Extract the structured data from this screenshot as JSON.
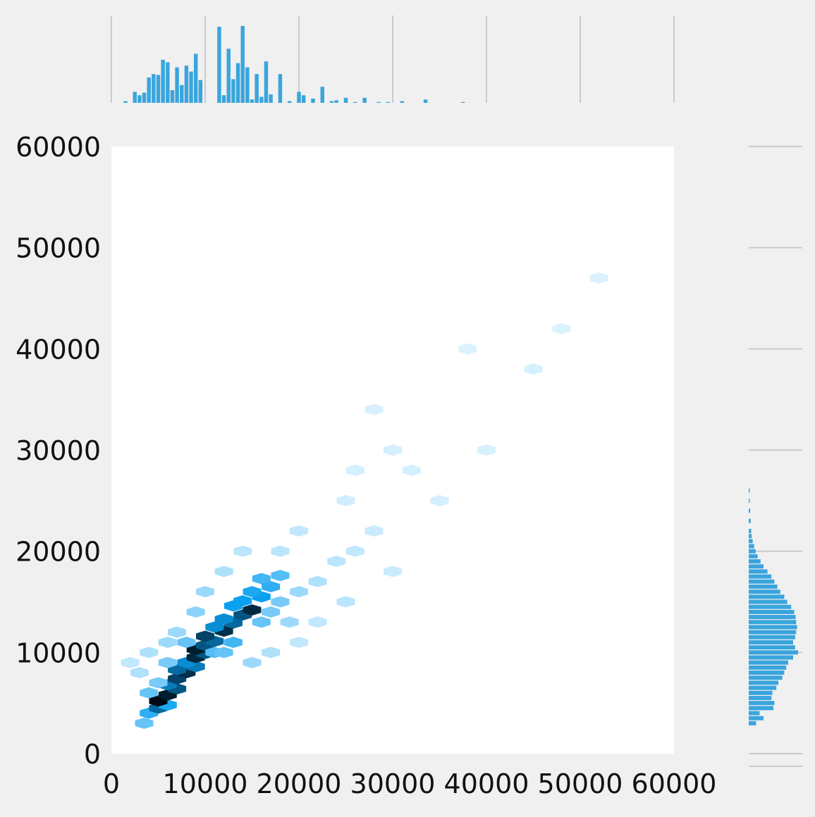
{
  "chart_data": {
    "type": "hexbin",
    "title": "",
    "xlabel": "",
    "ylabel": "",
    "xlim": [
      0,
      60000
    ],
    "ylim": [
      0,
      60000
    ],
    "x_ticks": [
      "0",
      "10000",
      "20000",
      "30000",
      "40000",
      "50000",
      "60000"
    ],
    "y_ticks": [
      "0",
      "10000",
      "20000",
      "30000",
      "40000",
      "50000",
      "60000"
    ],
    "grid": true,
    "colors": {
      "background": "#f0f0f0",
      "plot_background": "#ffffff",
      "bar": "#3aa5dc",
      "hex_low": "#e6f6ff",
      "hex_mid": "#0aa0f0",
      "hex_high": "#000a14",
      "grid": "#cbcbcb"
    },
    "hexbin_cells": [
      [
        3500,
        3000,
        0.35
      ],
      [
        4000,
        4000,
        0.5
      ],
      [
        5000,
        4500,
        0.75
      ],
      [
        6000,
        4800,
        0.55
      ],
      [
        5000,
        5200,
        1.0
      ],
      [
        6000,
        5800,
        0.95
      ],
      [
        7000,
        6400,
        0.8
      ],
      [
        6000,
        6800,
        0.7
      ],
      [
        7000,
        7400,
        0.85
      ],
      [
        8000,
        8000,
        0.9
      ],
      [
        7000,
        8300,
        0.75
      ],
      [
        9000,
        8600,
        0.7
      ],
      [
        8000,
        9000,
        0.65
      ],
      [
        9000,
        9500,
        0.92
      ],
      [
        10000,
        9900,
        0.8
      ],
      [
        9000,
        10300,
        0.95
      ],
      [
        10000,
        10700,
        0.8
      ],
      [
        11000,
        11100,
        0.75
      ],
      [
        10000,
        11600,
        0.85
      ],
      [
        12000,
        12100,
        0.9
      ],
      [
        11000,
        12500,
        0.65
      ],
      [
        13000,
        12900,
        0.75
      ],
      [
        12000,
        13300,
        0.65
      ],
      [
        14000,
        13700,
        0.8
      ],
      [
        15000,
        14200,
        0.92
      ],
      [
        13000,
        14600,
        0.6
      ],
      [
        14000,
        15100,
        0.6
      ],
      [
        16000,
        15500,
        0.6
      ],
      [
        15000,
        16000,
        0.55
      ],
      [
        17000,
        16500,
        0.5
      ],
      [
        16000,
        17300,
        0.45
      ],
      [
        18000,
        17600,
        0.4
      ],
      [
        4000,
        6000,
        0.35
      ],
      [
        5000,
        7000,
        0.3
      ],
      [
        3000,
        8000,
        0.15
      ],
      [
        6000,
        9000,
        0.3
      ],
      [
        8000,
        11000,
        0.35
      ],
      [
        7000,
        12000,
        0.2
      ],
      [
        11000,
        10000,
        0.4
      ],
      [
        12000,
        10000,
        0.35
      ],
      [
        13000,
        11000,
        0.45
      ],
      [
        16000,
        13000,
        0.35
      ],
      [
        17000,
        14000,
        0.3
      ],
      [
        18000,
        15000,
        0.3
      ],
      [
        19000,
        13000,
        0.2
      ],
      [
        20000,
        16000,
        0.2
      ],
      [
        22000,
        17000,
        0.15
      ],
      [
        24000,
        19000,
        0.12
      ],
      [
        25000,
        15000,
        0.12
      ],
      [
        26000,
        20000,
        0.1
      ],
      [
        28000,
        22000,
        0.08
      ],
      [
        30000,
        18000,
        0.08
      ],
      [
        9000,
        14000,
        0.25
      ],
      [
        10000,
        16000,
        0.2
      ],
      [
        12000,
        18000,
        0.15
      ],
      [
        14000,
        20000,
        0.12
      ],
      [
        6000,
        11000,
        0.2
      ],
      [
        4000,
        10000,
        0.15
      ],
      [
        2000,
        9000,
        0.1
      ],
      [
        15000,
        9000,
        0.2
      ],
      [
        17000,
        10000,
        0.15
      ],
      [
        20000,
        11000,
        0.1
      ],
      [
        22000,
        13000,
        0.1
      ],
      [
        35000,
        25000,
        0.05
      ],
      [
        40000,
        30000,
        0.04
      ],
      [
        45000,
        38000,
        0.04
      ],
      [
        32000,
        28000,
        0.05
      ],
      [
        28000,
        34000,
        0.04
      ],
      [
        18000,
        20000,
        0.12
      ],
      [
        20000,
        22000,
        0.1
      ],
      [
        25000,
        25000,
        0.06
      ],
      [
        30000,
        30000,
        0.05
      ],
      [
        48000,
        42000,
        0.03
      ],
      [
        52000,
        47000,
        0.03
      ],
      [
        38000,
        40000,
        0.03
      ],
      [
        26000,
        28000,
        0.05
      ]
    ],
    "marginal_x_bins": [
      [
        1500,
        0.02
      ],
      [
        2500,
        0.13
      ],
      [
        3000,
        0.09
      ],
      [
        3500,
        0.12
      ],
      [
        4000,
        0.3
      ],
      [
        4500,
        0.34
      ],
      [
        5000,
        0.33
      ],
      [
        5500,
        0.51
      ],
      [
        6000,
        0.48
      ],
      [
        6500,
        0.15
      ],
      [
        7000,
        0.42
      ],
      [
        7500,
        0.21
      ],
      [
        8000,
        0.44
      ],
      [
        8500,
        0.37
      ],
      [
        9000,
        0.58
      ],
      [
        9500,
        0.27
      ],
      [
        11500,
        0.9
      ],
      [
        12000,
        0.09
      ],
      [
        12500,
        0.64
      ],
      [
        13000,
        0.28
      ],
      [
        13500,
        0.47
      ],
      [
        14000,
        0.91
      ],
      [
        14500,
        0.42
      ],
      [
        15000,
        0.04
      ],
      [
        15500,
        0.34
      ],
      [
        16000,
        0.07
      ],
      [
        16500,
        0.49
      ],
      [
        17000,
        0.1
      ],
      [
        18000,
        0.34
      ],
      [
        19000,
        0.02
      ],
      [
        20000,
        0.13
      ],
      [
        20500,
        0.09
      ],
      [
        21500,
        0.05
      ],
      [
        22500,
        0.19
      ],
      [
        23500,
        0.02
      ],
      [
        24000,
        0.03
      ],
      [
        25000,
        0.06
      ],
      [
        26000,
        0.01
      ],
      [
        27000,
        0.06
      ],
      [
        28500,
        0.01
      ],
      [
        29500,
        0.01
      ],
      [
        31000,
        0.02
      ],
      [
        33500,
        0.04
      ],
      [
        37500,
        0.01
      ]
    ],
    "marginal_y_bins": [
      [
        3000,
        0.15
      ],
      [
        3500,
        0.3
      ],
      [
        4000,
        0.22
      ],
      [
        4500,
        0.5
      ],
      [
        5000,
        0.52
      ],
      [
        5500,
        0.46
      ],
      [
        6000,
        0.48
      ],
      [
        6500,
        0.56
      ],
      [
        7000,
        0.6
      ],
      [
        7500,
        0.68
      ],
      [
        8000,
        0.72
      ],
      [
        8500,
        0.76
      ],
      [
        9000,
        0.8
      ],
      [
        9500,
        0.9
      ],
      [
        10000,
        1.0
      ],
      [
        10500,
        0.94
      ],
      [
        11000,
        0.9
      ],
      [
        11500,
        0.94
      ],
      [
        12000,
        0.96
      ],
      [
        12500,
        0.98
      ],
      [
        13000,
        0.96
      ],
      [
        13500,
        0.95
      ],
      [
        14000,
        0.92
      ],
      [
        14500,
        0.86
      ],
      [
        15000,
        0.78
      ],
      [
        15500,
        0.72
      ],
      [
        16000,
        0.64
      ],
      [
        16500,
        0.58
      ],
      [
        17000,
        0.52
      ],
      [
        17500,
        0.46
      ],
      [
        18000,
        0.38
      ],
      [
        18500,
        0.3
      ],
      [
        19000,
        0.24
      ],
      [
        19500,
        0.18
      ],
      [
        20000,
        0.14
      ],
      [
        20500,
        0.11
      ],
      [
        21000,
        0.08
      ],
      [
        21500,
        0.06
      ],
      [
        22000,
        0.05
      ],
      [
        23000,
        0.04
      ],
      [
        24000,
        0.03
      ],
      [
        25000,
        0.02
      ],
      [
        26000,
        0.02
      ]
    ]
  }
}
